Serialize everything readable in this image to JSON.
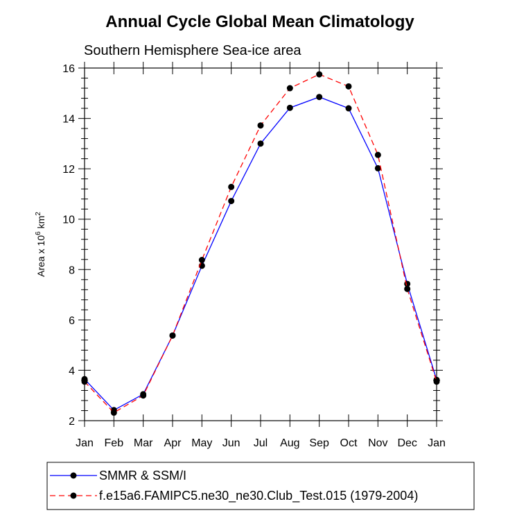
{
  "chart_data": {
    "type": "line",
    "title": "Annual Cycle Global Mean Climatology",
    "subtitle": "Southern Hemisphere Sea-ice area",
    "ylabel": {
      "prefix": "Area x 10",
      "exp1": "6",
      "mid": " km",
      "exp2": "2"
    },
    "xlabel": "",
    "categories": [
      "Jan",
      "Feb",
      "Mar",
      "Apr",
      "May",
      "Jun",
      "Jul",
      "Aug",
      "Sep",
      "Oct",
      "Nov",
      "Dec",
      "Jan"
    ],
    "ylim": [
      2,
      16
    ],
    "yticks": [
      2,
      4,
      6,
      8,
      10,
      12,
      14,
      16
    ],
    "series": [
      {
        "name": "SMMR & SSM/I",
        "color": "#0000ff",
        "style": "solid",
        "values": [
          3.65,
          2.42,
          3.05,
          5.38,
          8.15,
          10.72,
          13.0,
          14.42,
          14.85,
          14.4,
          12.02,
          7.43,
          3.62
        ]
      },
      {
        "name": "f.e15a6.FAMIPC5.ne30_ne30.Club_Test.015 (1979-2004)",
        "color": "#ff0000",
        "style": "dashed",
        "values": [
          3.55,
          2.32,
          3.0,
          5.38,
          8.38,
          11.28,
          13.72,
          15.2,
          15.75,
          15.27,
          12.55,
          7.23,
          3.55
        ]
      }
    ]
  }
}
